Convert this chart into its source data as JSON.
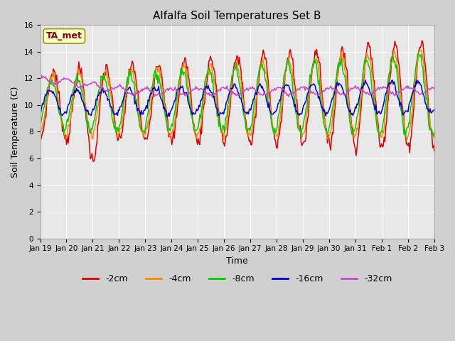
{
  "title": "Alfalfa Soil Temperatures Set B",
  "xlabel": "Time",
  "ylabel": "Soil Temperature (C)",
  "ylim": [
    0,
    16
  ],
  "yticks": [
    0,
    2,
    4,
    6,
    8,
    10,
    12,
    14,
    16
  ],
  "fig_bg": "#d0d0d0",
  "plot_bg": "#e8e8e8",
  "grid_color": "white",
  "annotation_text": "TA_met",
  "annotation_color": "#8b0000",
  "annotation_bg": "#ffffcc",
  "annotation_edge": "#999900",
  "line_colors": {
    "-2cm": "#dd0000",
    "-4cm": "#ff8800",
    "-8cm": "#00cc00",
    "-16cm": "#0000cc",
    "-32cm": "#cc44cc"
  },
  "legend_labels": [
    "-2cm",
    "-4cm",
    "-8cm",
    "-16cm",
    "-32cm"
  ],
  "tick_labels": [
    "Jan 19",
    "Jan 20",
    "Jan 21",
    "Jan 22",
    "Jan 23",
    "Jan 24",
    "Jan 25",
    "Jan 26",
    "Jan 27",
    "Jan 28",
    "Jan 29",
    "Jan 30",
    "Jan 31",
    "Feb 1",
    "Feb 2",
    "Feb 3"
  ]
}
